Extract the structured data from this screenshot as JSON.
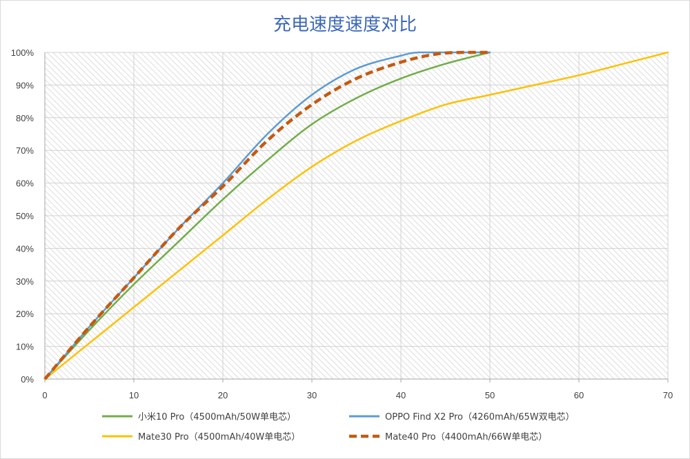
{
  "chart_data": {
    "type": "line",
    "title": "充电速度速度对比",
    "xlabel": "",
    "ylabel": "",
    "xlim": [
      0,
      70
    ],
    "ylim": [
      0,
      100
    ],
    "x_ticks": [
      "0",
      "10",
      "20",
      "30",
      "40",
      "50",
      "60",
      "70"
    ],
    "y_ticks": [
      "0%",
      "10%",
      "20%",
      "30%",
      "40%",
      "50%",
      "60%",
      "70%",
      "80%",
      "90%",
      "100%"
    ],
    "grid": true,
    "legend_position": "bottom",
    "series": [
      {
        "name": "小米10 Pro（4500mAh/50W单电芯）",
        "color": "#70ad47",
        "dash": false,
        "points": [
          [
            0,
            0
          ],
          [
            5,
            15
          ],
          [
            10,
            29
          ],
          [
            15,
            42
          ],
          [
            20,
            55
          ],
          [
            25,
            67
          ],
          [
            30,
            78
          ],
          [
            35,
            86
          ],
          [
            40,
            92
          ],
          [
            45,
            96.5
          ],
          [
            50,
            100
          ]
        ]
      },
      {
        "name": "OPPO Find X2 Pro（4260mAh/65W双电芯）",
        "color": "#5b9bd5",
        "dash": false,
        "points": [
          [
            0,
            0
          ],
          [
            5,
            16
          ],
          [
            10,
            31
          ],
          [
            15,
            46
          ],
          [
            20,
            60
          ],
          [
            25,
            75
          ],
          [
            30,
            87
          ],
          [
            35,
            95
          ],
          [
            40,
            99
          ],
          [
            42,
            100
          ],
          [
            45,
            100
          ],
          [
            50,
            100
          ]
        ]
      },
      {
        "name": "Mate30 Pro（4500mAh/40W单电芯）",
        "color": "#ffc000",
        "dash": false,
        "points": [
          [
            0,
            0
          ],
          [
            5,
            11
          ],
          [
            10,
            22
          ],
          [
            15,
            33
          ],
          [
            20,
            44
          ],
          [
            25,
            55
          ],
          [
            30,
            65
          ],
          [
            35,
            73
          ],
          [
            40,
            79
          ],
          [
            45,
            84
          ],
          [
            50,
            87
          ],
          [
            55,
            90
          ],
          [
            60,
            93
          ],
          [
            65,
            96.5
          ],
          [
            70,
            100
          ]
        ]
      },
      {
        "name": "Mate40 Pro（4400mAh/66W单电芯）",
        "color": "#c55a11",
        "dash": true,
        "points": [
          [
            0,
            0
          ],
          [
            5,
            16
          ],
          [
            10,
            31
          ],
          [
            15,
            46
          ],
          [
            20,
            59
          ],
          [
            25,
            73
          ],
          [
            30,
            84
          ],
          [
            35,
            92
          ],
          [
            40,
            97
          ],
          [
            44,
            99.5
          ],
          [
            47,
            100
          ],
          [
            50,
            100
          ]
        ]
      }
    ]
  }
}
